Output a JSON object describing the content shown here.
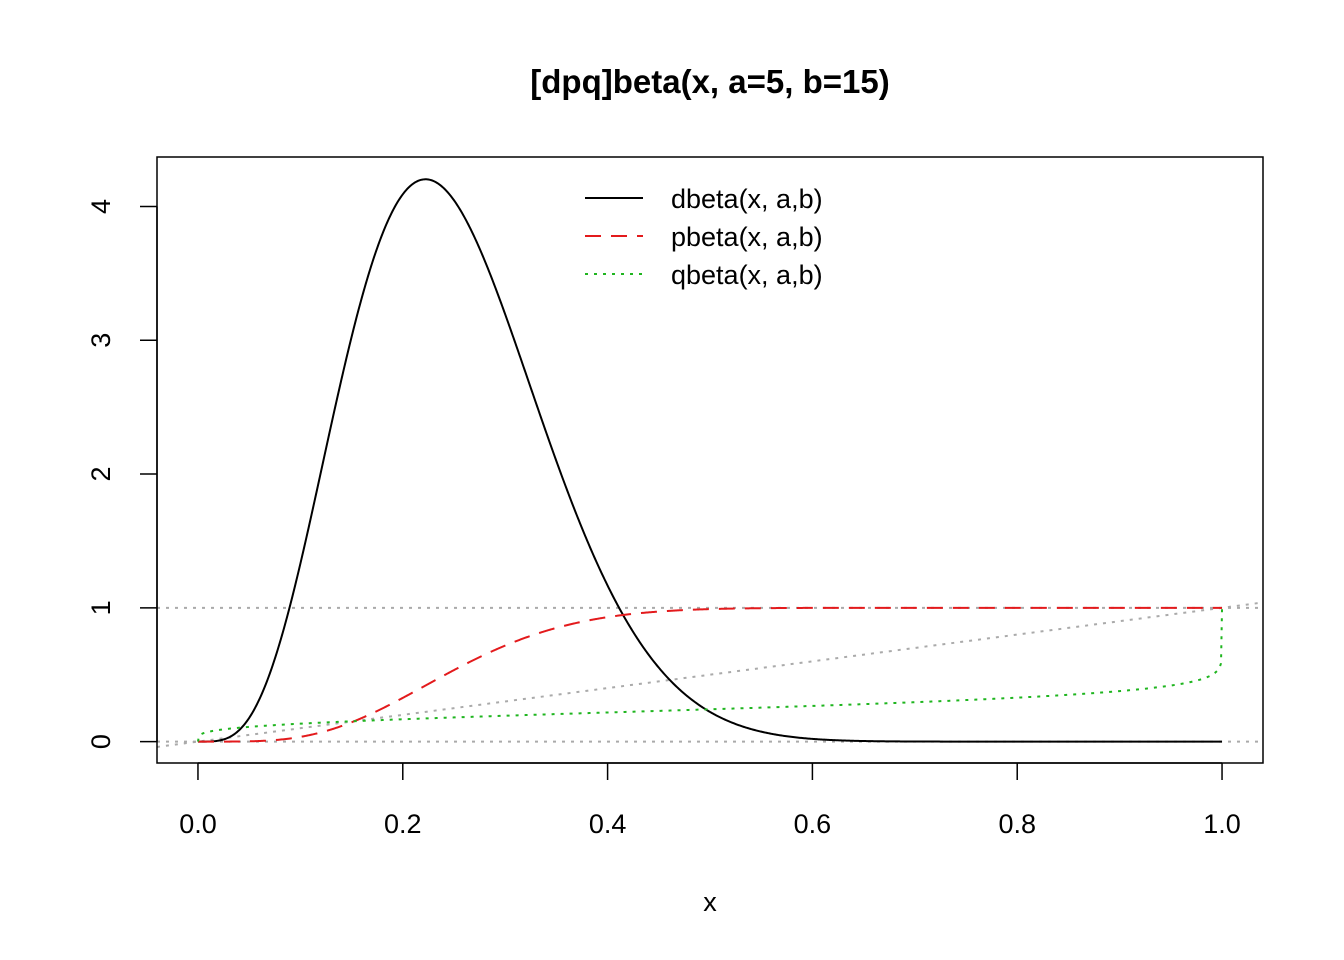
{
  "chart_data": {
    "type": "line",
    "title": "[dpq]beta(x, a=5, b=15)",
    "xlabel": "x",
    "ylabel": "",
    "xlim": [
      -0.04,
      1.04
    ],
    "ylim": [
      -0.16,
      4.37
    ],
    "x_ticks": [
      "0.0",
      "0.2",
      "0.4",
      "0.6",
      "0.8",
      "1.0"
    ],
    "y_ticks": [
      "0",
      "1",
      "2",
      "3",
      "4"
    ],
    "legend_position": "top-center",
    "reference_lines": [
      {
        "kind": "horizontal",
        "value": 0,
        "color": "#aaaaaa",
        "style": "dotted"
      },
      {
        "kind": "horizontal",
        "value": 1,
        "color": "#aaaaaa",
        "style": "dotted"
      },
      {
        "kind": "diagonal",
        "slope": 1,
        "intercept": 0,
        "color": "#aaaaaa",
        "style": "dotted"
      }
    ],
    "series": [
      {
        "name": "dbeta(x, a,b)",
        "color": "#000000",
        "style": "solid",
        "function": "dbeta",
        "a": 5,
        "b": 15
      },
      {
        "name": "pbeta(x, a,b)",
        "color": "#e31a1c",
        "style": "dashed",
        "function": "pbeta",
        "a": 5,
        "b": 15
      },
      {
        "name": "qbeta(x, a,b)",
        "color": "#1fb51f",
        "style": "dotted",
        "function": "qbeta",
        "a": 5,
        "b": 15
      }
    ]
  }
}
